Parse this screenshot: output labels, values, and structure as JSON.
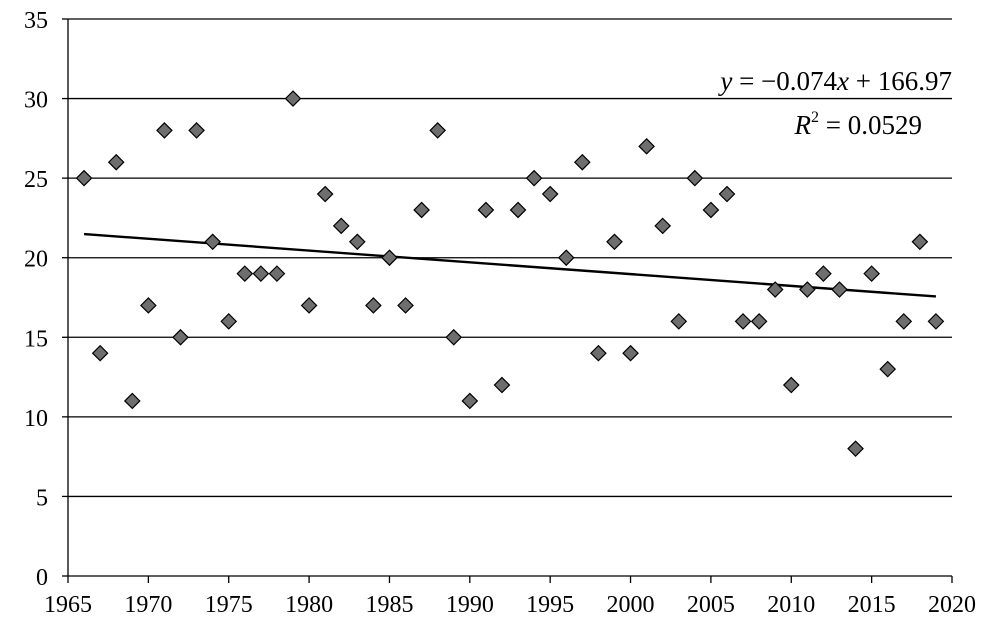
{
  "chart_data": {
    "type": "scatter",
    "title": "",
    "xlabel": "",
    "ylabel": "",
    "xlim": [
      1965,
      2020
    ],
    "ylim": [
      0,
      35
    ],
    "x_ticks": [
      1965,
      1970,
      1975,
      1980,
      1985,
      1990,
      1995,
      2000,
      2005,
      2010,
      2015,
      2020
    ],
    "y_ticks": [
      0,
      5,
      10,
      15,
      20,
      25,
      30,
      35
    ],
    "grid": "horizontal",
    "marker": "diamond",
    "marker_color": "#6e6e6e",
    "x": [
      1966,
      1967,
      1968,
      1969,
      1970,
      1971,
      1972,
      1973,
      1974,
      1975,
      1976,
      1977,
      1978,
      1979,
      1980,
      1981,
      1982,
      1983,
      1984,
      1985,
      1986,
      1987,
      1988,
      1989,
      1990,
      1991,
      1992,
      1993,
      1994,
      1995,
      1996,
      1997,
      1998,
      1999,
      2000,
      2001,
      2002,
      2003,
      2004,
      2005,
      2006,
      2007,
      2008,
      2009,
      2010,
      2011,
      2012,
      2013,
      2014,
      2015,
      2016,
      2017,
      2018,
      2019
    ],
    "y": [
      25,
      14,
      26,
      11,
      17,
      28,
      15,
      28,
      21,
      16,
      19,
      19,
      19,
      30,
      17,
      24,
      22,
      21,
      17,
      20,
      17,
      23,
      28,
      15,
      11,
      23,
      12,
      23,
      25,
      24,
      20,
      26,
      14,
      21,
      14,
      27,
      22,
      16,
      25,
      23,
      24,
      16,
      16,
      18,
      12,
      18,
      19,
      18,
      8,
      19,
      13,
      16,
      21,
      16
    ],
    "trendline": {
      "slope": -0.074,
      "intercept": 166.97,
      "x_range": [
        1966,
        2019
      ]
    },
    "annotations": {
      "eq_y": "y",
      "eq_rest": " = −0.074",
      "eq_x": "x",
      "eq_tail": " + 166.97",
      "r_R": "R",
      "r_sup": "2",
      "r_rest": " = 0.0529"
    }
  }
}
